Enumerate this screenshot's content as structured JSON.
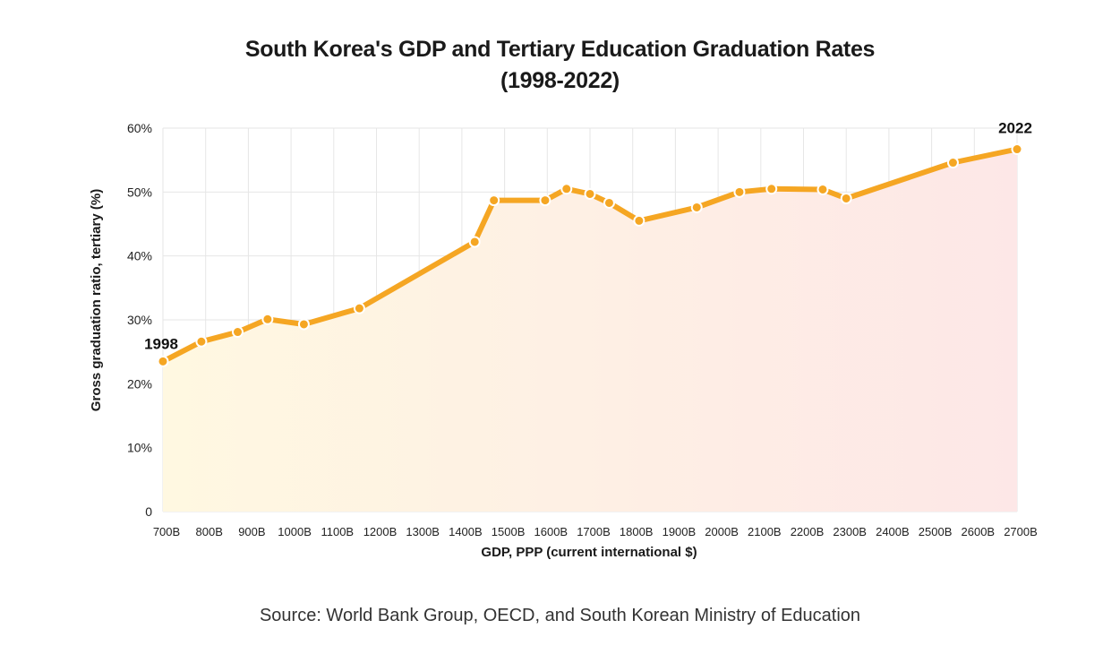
{
  "title_line1": "South Korea's GDP and Tertiary Education Graduation Rates",
  "title_line2": "(1998-2022)",
  "source": "Source: World Bank Group, OECD, and South Korean Ministry of Education",
  "colors": {
    "line": "#F5A623",
    "fill_start": "#FFF8E1",
    "fill_end": "#FDE7E7",
    "grid": "#e6e6e6"
  },
  "chart_data": {
    "type": "line",
    "title": "South Korea's GDP and Tertiary Education Graduation Rates (1998-2022)",
    "xlabel": "GDP, PPP (current international $)",
    "ylabel": "Gross graduation ratio, tertiary (%)",
    "xlim": [
      700,
      2700
    ],
    "ylim": [
      0,
      60
    ],
    "grid": true,
    "x_ticks": [
      700,
      800,
      900,
      1000,
      1100,
      1200,
      1300,
      1400,
      1500,
      1600,
      1700,
      1800,
      1900,
      2000,
      2100,
      2200,
      2300,
      2400,
      2500,
      2600,
      2700
    ],
    "x_tick_labels": [
      "700B",
      "800B",
      "900B",
      "1000B",
      "1100B",
      "1200B",
      "1300B",
      "1400B",
      "1500B",
      "1600B",
      "1700B",
      "1800B",
      "1900B",
      "2000B",
      "2100B",
      "2200B",
      "2300B",
      "2400B",
      "2500B",
      "2600B",
      "2700B"
    ],
    "y_ticks": [
      0,
      10,
      20,
      30,
      40,
      50,
      60
    ],
    "y_tick_labels": [
      "0",
      "10%",
      "20%",
      "30%",
      "40%",
      "50%",
      "60%"
    ],
    "series": [
      {
        "points": [
          {
            "x": 700,
            "y": 23.5
          },
          {
            "x": 790,
            "y": 26.6
          },
          {
            "x": 875,
            "y": 28.1
          },
          {
            "x": 945,
            "y": 30.1
          },
          {
            "x": 1030,
            "y": 29.3
          },
          {
            "x": 1160,
            "y": 31.8
          },
          {
            "x": 1430,
            "y": 42.2
          },
          {
            "x": 1475,
            "y": 48.7
          },
          {
            "x": 1595,
            "y": 48.7
          },
          {
            "x": 1645,
            "y": 50.5
          },
          {
            "x": 1700,
            "y": 49.7
          },
          {
            "x": 1745,
            "y": 48.3
          },
          {
            "x": 1815,
            "y": 45.5
          },
          {
            "x": 1950,
            "y": 47.6
          },
          {
            "x": 2050,
            "y": 50.0
          },
          {
            "x": 2125,
            "y": 50.5
          },
          {
            "x": 2245,
            "y": 50.4
          },
          {
            "x": 2300,
            "y": 49.0
          },
          {
            "x": 2550,
            "y": 54.6
          },
          {
            "x": 2700,
            "y": 56.7
          }
        ]
      }
    ],
    "annotations": [
      {
        "text": "1998",
        "x": 700,
        "y": 23.5
      },
      {
        "text": "2022",
        "x": 2700,
        "y": 56.7
      }
    ]
  }
}
